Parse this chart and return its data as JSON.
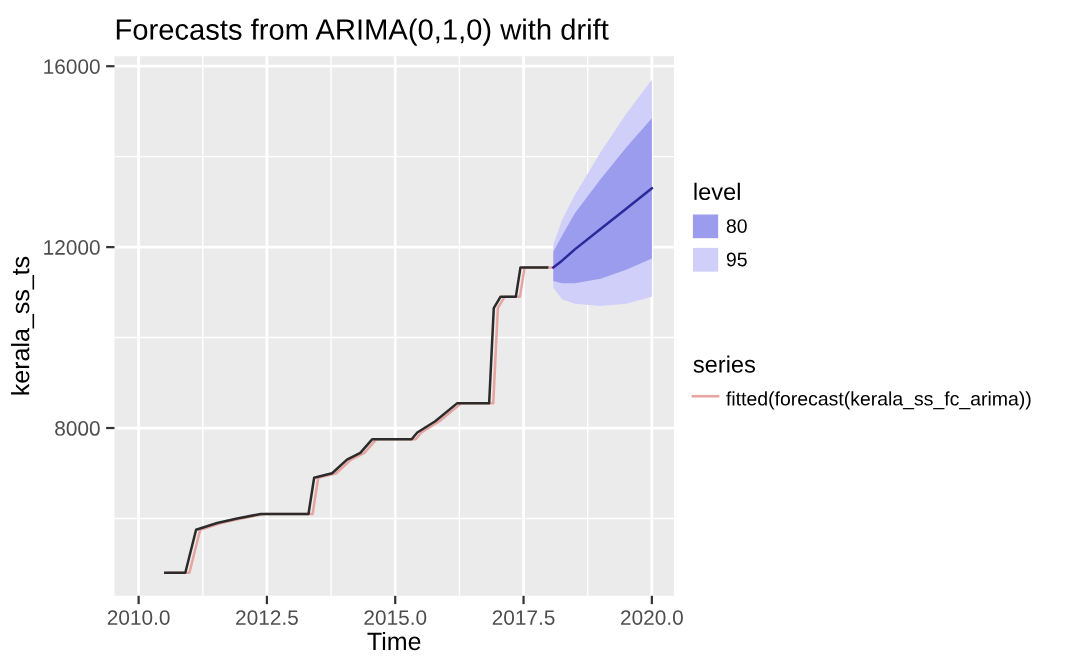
{
  "chart_data": {
    "type": "line",
    "title": "Forecasts from ARIMA(0,1,0) with drift",
    "xlabel": "Time",
    "ylabel": "kerala_ss_ts",
    "legend_title": [
      "level",
      "series"
    ],
    "legend": "right",
    "grid": true,
    "xlim": [
      2009.53,
      2020.43
    ],
    "ylim": [
      4290,
      16220
    ],
    "xticks": [
      {
        "value": 2010,
        "label": "2010.0"
      },
      {
        "value": 2011.25,
        "label": null
      },
      {
        "value": 2012.5,
        "label": "2012.5"
      },
      {
        "value": 2013.75,
        "label": null
      },
      {
        "value": 2015,
        "label": "2015.0"
      },
      {
        "value": 2016.25,
        "label": null
      },
      {
        "value": 2017.5,
        "label": "2017.5"
      },
      {
        "value": 2018.75,
        "label": null
      },
      {
        "value": 2020,
        "label": "2020.0"
      }
    ],
    "yticks": [
      {
        "value": 6000,
        "label": null
      },
      8000,
      {
        "value": 10000,
        "label": null
      },
      12000,
      {
        "value": 14000,
        "label": null
      },
      16000
    ],
    "series": [
      {
        "color": "#9c9cee",
        "name": "80",
        "x": [
          2018.08,
          2018.25,
          2018.5,
          2019.0,
          2019.5,
          2020.0
        ],
        "values": [
          null,
          null,
          null,
          null,
          null,
          null
        ],
        "lower": [
          11250,
          11200,
          11200,
          11300,
          11500,
          11750
        ],
        "upper": [
          11900,
          12250,
          12750,
          13500,
          14200,
          14850
        ]
      },
      {
        "color": "#cfcffa",
        "name": "95",
        "x": [
          2018.08,
          2018.25,
          2018.5,
          2019.0,
          2019.5,
          2020.0
        ],
        "values": [
          null,
          null,
          null,
          null,
          null,
          null
        ],
        "lower": [
          11100,
          10850,
          10750,
          10700,
          10750,
          10900
        ],
        "upper": [
          12050,
          12600,
          13150,
          14100,
          14950,
          15700
        ]
      },
      {
        "color": "#e6a5a0",
        "name": "fitted(forecast(kerala_ss_fc_arima))",
        "x": [
          2010.6,
          2010.99,
          2011.2,
          2011.61,
          2012.0,
          2012.46,
          2013.39,
          2013.5,
          2013.85,
          2014.14,
          2014.4,
          2014.63,
          2015.4,
          2015.51,
          2015.86,
          2016.29,
          2016.91,
          2017.0,
          2017.13,
          2017.43,
          2017.52,
          2018.04
        ],
        "values": [
          4800,
          4800,
          5750,
          5900,
          6000,
          6100,
          6100,
          6900,
          7000,
          7300,
          7450,
          7750,
          7750,
          7900,
          8150,
          8550,
          8550,
          10650,
          10900,
          10900,
          11550,
          11550
        ]
      },
      {
        "color": "#2b2b2b",
        "x": [
          2010.52,
          2010.91,
          2011.12,
          2011.53,
          2011.92,
          2012.38,
          2013.31,
          2013.42,
          2013.77,
          2014.06,
          2014.32,
          2014.55,
          2015.32,
          2015.43,
          2015.78,
          2016.21,
          2016.83,
          2016.92,
          2017.05,
          2017.35,
          2017.44,
          2017.96
        ],
        "values": [
          4800,
          4800,
          5750,
          5900,
          6000,
          6100,
          6100,
          6900,
          7000,
          7300,
          7450,
          7750,
          7750,
          7900,
          8150,
          8550,
          8550,
          10650,
          10900,
          10900,
          11550,
          11550
        ]
      },
      {
        "color": "#2a2a9a",
        "x": [
          2018.08,
          2018.25,
          2018.5,
          2019.0,
          2019.5,
          2020.0
        ],
        "values": [
          11550,
          11700,
          11950,
          12400,
          12850,
          13300
        ]
      }
    ]
  }
}
